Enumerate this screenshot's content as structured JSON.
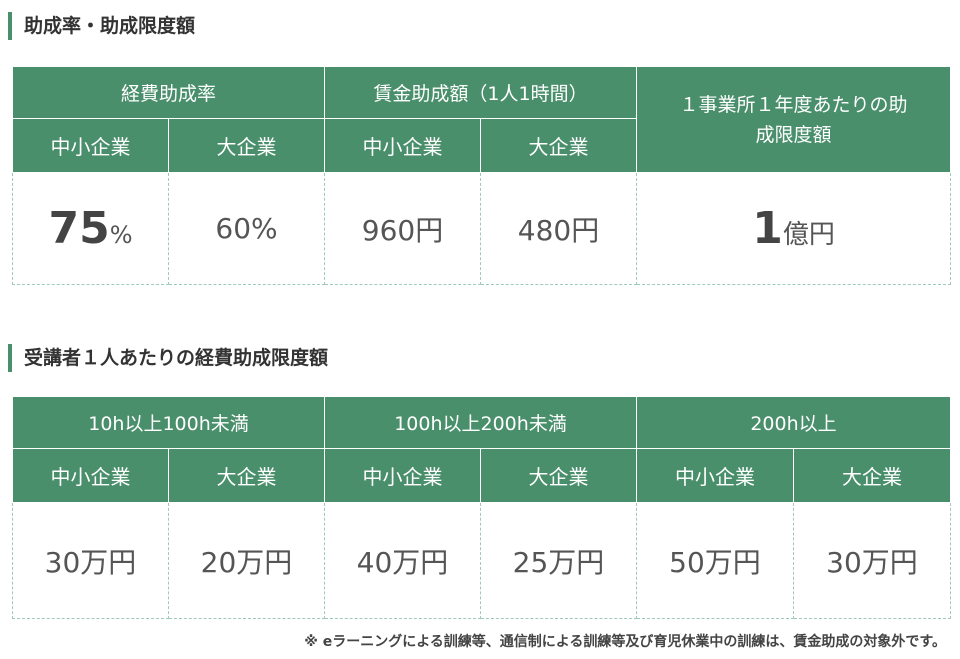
{
  "section1": {
    "title": "助成率・助成限度額",
    "headers": {
      "expense_rate": "経費助成率",
      "wage_amount": "賃金助成額（1人1時間）",
      "limit": "１事業所１年度あたりの助成限度額",
      "sme": "中小企業",
      "large": "大企業"
    },
    "values": {
      "expense_sme_num": "75",
      "expense_sme_unit": "%",
      "expense_large": "60%",
      "wage_sme": "960円",
      "wage_large": "480円",
      "limit_num": "1",
      "limit_unit": "億円"
    }
  },
  "section2": {
    "title": "受講者１人あたりの経費助成限度額",
    "headers": {
      "range1": "10h以上100h未満",
      "range2": "100h以上200h未満",
      "range3": "200h以上",
      "sme": "中小企業",
      "large": "大企業"
    },
    "values": [
      "30万円",
      "20万円",
      "40万円",
      "25万円",
      "50万円",
      "30万円"
    ]
  },
  "note": "※ eラーニングによる訓練等、通信制による訓練等及び育児休業中の訓練は、賃金助成の対象外です。",
  "colors": {
    "header_green": "#4a8f6b",
    "border_dashed": "#9fc9b9"
  }
}
